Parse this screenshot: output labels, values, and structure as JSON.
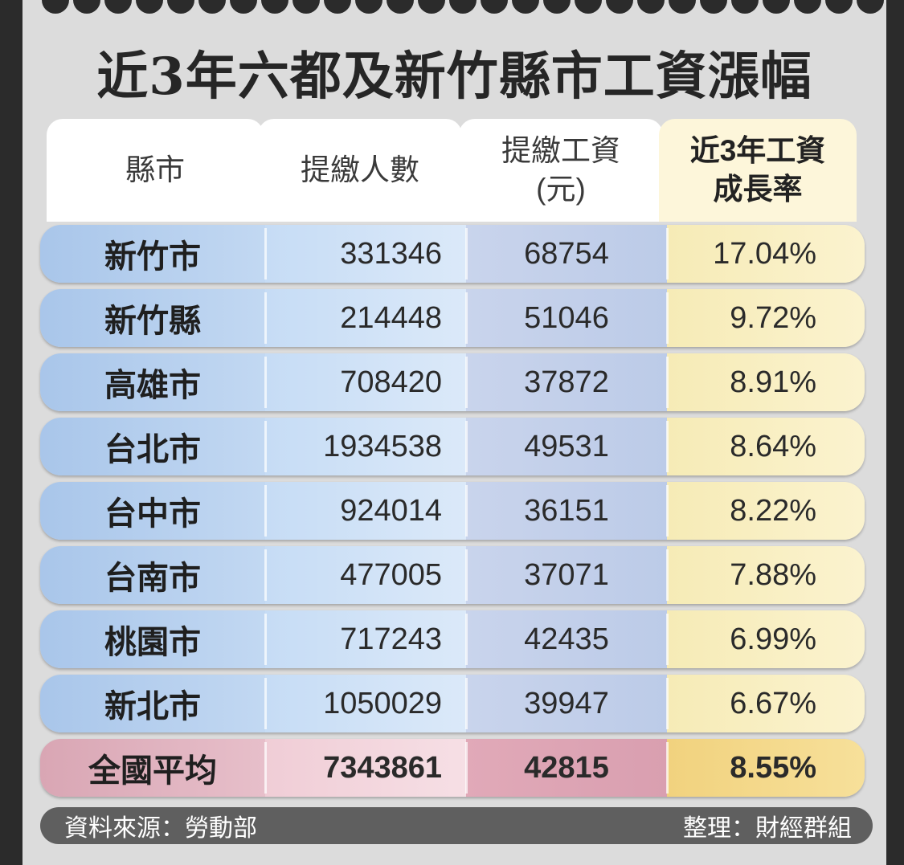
{
  "title": "近3年六都及新竹縣市工資漲幅",
  "chart_data": {
    "type": "table",
    "columns": [
      {
        "key": "city",
        "label": [
          "縣市"
        ]
      },
      {
        "key": "insured_count",
        "label": [
          "提繳人數"
        ]
      },
      {
        "key": "insured_wage",
        "label": [
          "提繳工資",
          "(元)"
        ]
      },
      {
        "key": "growth_rate",
        "label": [
          "近3年工資",
          "成長率"
        ]
      }
    ],
    "rows": [
      {
        "city": "新竹市",
        "insured_count": "331346",
        "insured_wage": "68754",
        "growth_rate": "17.04%"
      },
      {
        "city": "新竹縣",
        "insured_count": "214448",
        "insured_wage": "51046",
        "growth_rate": "9.72%"
      },
      {
        "city": "高雄市",
        "insured_count": "708420",
        "insured_wage": "37872",
        "growth_rate": "8.91%"
      },
      {
        "city": "台北市",
        "insured_count": "1934538",
        "insured_wage": "49531",
        "growth_rate": "8.64%"
      },
      {
        "city": "台中市",
        "insured_count": "924014",
        "insured_wage": "36151",
        "growth_rate": "8.22%"
      },
      {
        "city": "台南市",
        "insured_count": "477005",
        "insured_wage": "37071",
        "growth_rate": "7.88%"
      },
      {
        "city": "桃園市",
        "insured_count": "717243",
        "insured_wage": "42435",
        "growth_rate": "6.99%"
      },
      {
        "city": "新北市",
        "insured_count": "1050029",
        "insured_wage": "39947",
        "growth_rate": "6.67%"
      }
    ],
    "summary_row": {
      "city": "全國平均",
      "insured_count": "7343861",
      "insured_wage": "42815",
      "growth_rate": "8.55%"
    }
  },
  "footer": {
    "source": "資料來源：勞動部",
    "compiled_by": "整理：財經群組"
  },
  "colors": {
    "background": "#dcdcdc",
    "row_city": "#a9c6ea",
    "row_count": "#c6dcf5",
    "row_wage": "#c9d4ec",
    "row_rate": "#f6ebb6",
    "avg_city": "#d9a6b4",
    "avg_rate": "#f1d27e",
    "footer_bar": "#5f5f5f"
  }
}
